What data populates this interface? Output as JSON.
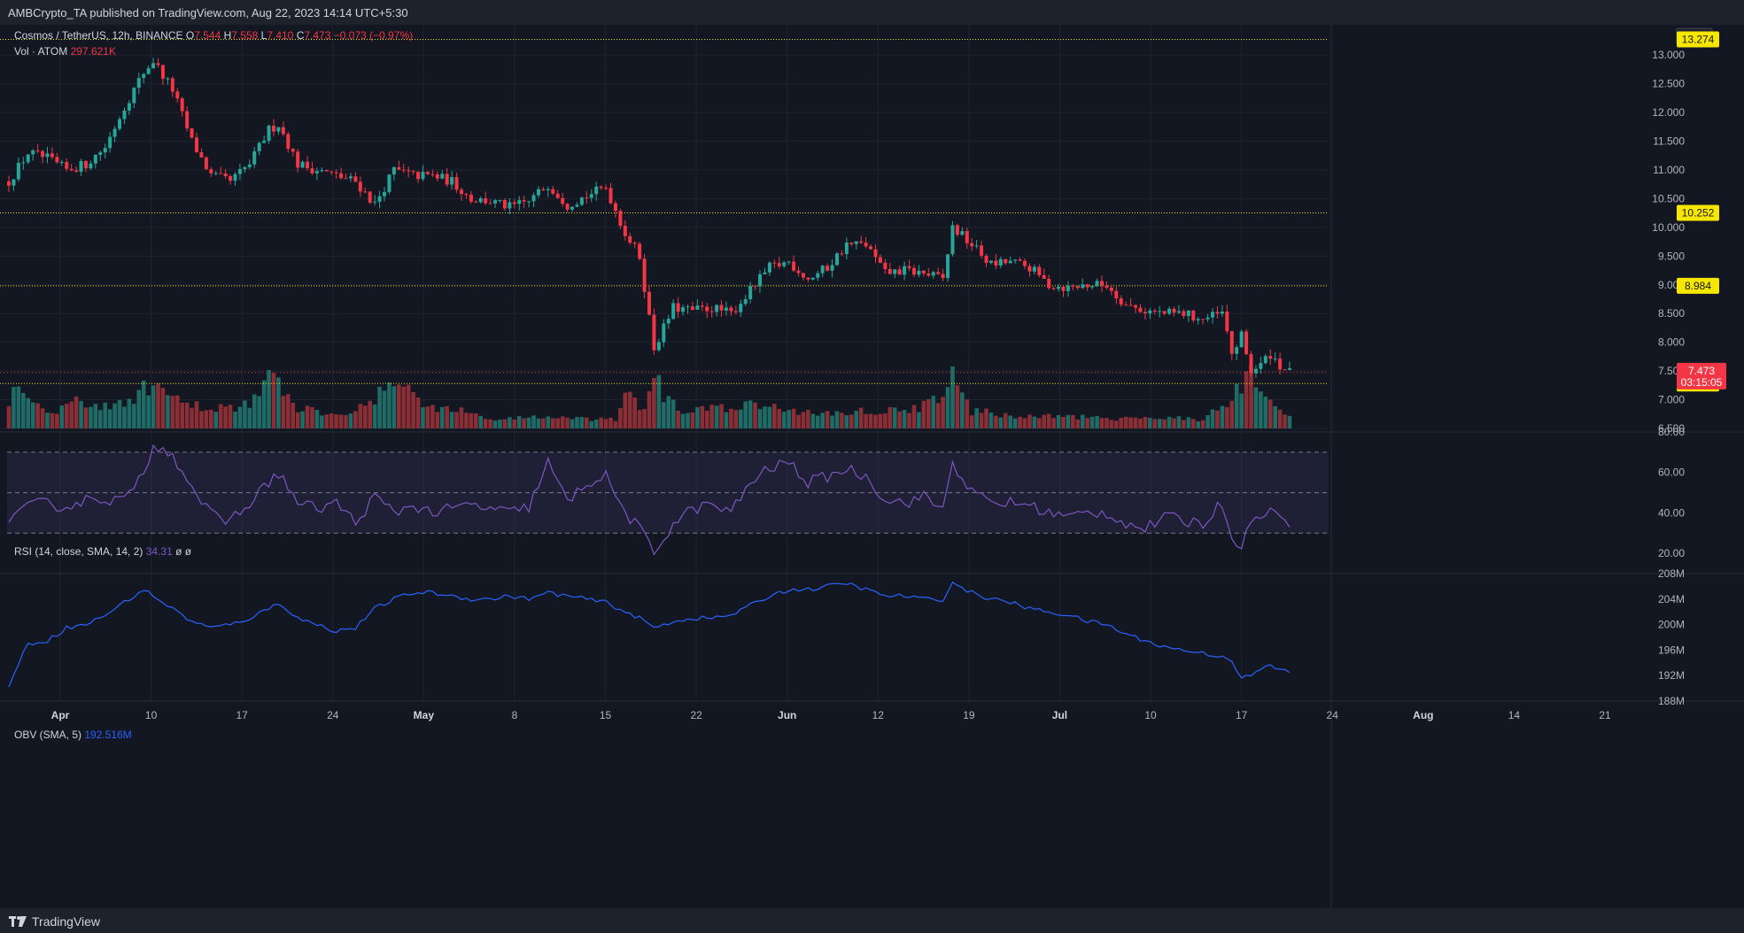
{
  "header": {
    "publish_text": "AMBCrypto_TA published on TradingView.com, Aug 22, 2023 14:14 UTC+5:30"
  },
  "legend": {
    "symbol": "Cosmos / TetherUS, 12h, BINANCE",
    "o_label": "O",
    "o_value": "7.544",
    "h_label": "H",
    "h_value": "7.558",
    "l_label": "L",
    "l_value": "7.410",
    "c_label": "C",
    "c_value": "7.473",
    "change": "−0.073 (−0.97%)",
    "vol_label": "Vol · ATOM",
    "vol_value": "297.621K",
    "rsi_label": "RSI (14, close, SMA, 14, 2)",
    "rsi_value": "34.31",
    "rsi_extra": "ø ø",
    "obv_label": "OBV (SMA, 5)",
    "obv_value": "192.516M"
  },
  "footer": {
    "brand": "TradingView"
  },
  "colors": {
    "bull": "#26a69a",
    "bear": "#f23645",
    "bull_vol": "#1f6b66",
    "bear_vol": "#8c2e35",
    "level": "#f7e600",
    "rsi": "#7e57c2",
    "obv": "#2962ff",
    "grid": "#1f2330"
  },
  "chart_data": {
    "type": "candlestick",
    "symbol": "ATOMUSDT",
    "interval": "12h",
    "quote_currency": "USDT",
    "price_axis": {
      "ylim": [
        6.5,
        13.25
      ],
      "ticks": [
        "6.500",
        "7.000",
        "7.500",
        "8.000",
        "8.500",
        "9.000",
        "9.500",
        "10.000",
        "10.500",
        "11.000",
        "11.500",
        "12.000",
        "12.500",
        "13.000"
      ]
    },
    "x_ticks": [
      {
        "label": "Apr",
        "bold": true
      },
      {
        "label": "10",
        "bold": false
      },
      {
        "label": "17",
        "bold": false
      },
      {
        "label": "24",
        "bold": false
      },
      {
        "label": "May",
        "bold": true
      },
      {
        "label": "8",
        "bold": false
      },
      {
        "label": "15",
        "bold": false
      },
      {
        "label": "22",
        "bold": false
      },
      {
        "label": "Jun",
        "bold": true
      },
      {
        "label": "12",
        "bold": false
      },
      {
        "label": "19",
        "bold": false
      },
      {
        "label": "Jul",
        "bold": true
      },
      {
        "label": "10",
        "bold": false
      },
      {
        "label": "17",
        "bold": false
      },
      {
        "label": "24",
        "bold": false
      },
      {
        "label": "Aug",
        "bold": true
      },
      {
        "label": "14",
        "bold": false
      },
      {
        "label": "21",
        "bold": false
      }
    ],
    "levels": [
      {
        "value": 13.274,
        "label": "13.274"
      },
      {
        "value": 10.252,
        "label": "10.252"
      },
      {
        "value": 8.984,
        "label": "8.984"
      },
      {
        "value": 7.282,
        "label": "7.282"
      }
    ],
    "last_price": {
      "value": 7.473,
      "label": "7.473",
      "countdown": "03:15:05"
    },
    "price_path": [
      [
        0,
        10.8
      ],
      [
        4,
        11.3
      ],
      [
        8,
        11.2
      ],
      [
        12,
        11.0
      ],
      [
        16,
        11.1
      ],
      [
        20,
        11.4
      ],
      [
        24,
        12.1
      ],
      [
        28,
        12.7
      ],
      [
        30,
        12.9
      ],
      [
        34,
        12.4
      ],
      [
        38,
        11.5
      ],
      [
        42,
        10.9
      ],
      [
        46,
        10.8
      ],
      [
        50,
        11.1
      ],
      [
        54,
        11.7
      ],
      [
        56,
        11.8
      ],
      [
        60,
        11.1
      ],
      [
        64,
        11.0
      ],
      [
        68,
        10.9
      ],
      [
        72,
        10.8
      ],
      [
        76,
        10.4
      ],
      [
        80,
        11.0
      ],
      [
        84,
        10.9
      ],
      [
        88,
        10.9
      ],
      [
        92,
        10.8
      ],
      [
        96,
        10.5
      ],
      [
        100,
        10.45
      ],
      [
        104,
        10.35
      ],
      [
        108,
        10.45
      ],
      [
        112,
        10.75
      ],
      [
        116,
        10.4
      ],
      [
        120,
        10.55
      ],
      [
        124,
        10.7
      ],
      [
        128,
        9.9
      ],
      [
        131,
        9.5
      ],
      [
        134,
        7.9
      ],
      [
        138,
        8.6
      ],
      [
        142,
        8.55
      ],
      [
        146,
        8.6
      ],
      [
        150,
        8.5
      ],
      [
        154,
        8.9
      ],
      [
        158,
        9.3
      ],
      [
        162,
        9.4
      ],
      [
        166,
        9.1
      ],
      [
        170,
        9.3
      ],
      [
        174,
        9.7
      ],
      [
        178,
        9.7
      ],
      [
        182,
        9.2
      ],
      [
        186,
        9.25
      ],
      [
        190,
        9.2
      ],
      [
        194,
        9.1
      ],
      [
        196,
        10.0
      ],
      [
        200,
        9.7
      ],
      [
        204,
        9.35
      ],
      [
        208,
        9.4
      ],
      [
        212,
        9.3
      ],
      [
        216,
        9.0
      ],
      [
        220,
        8.95
      ],
      [
        224,
        9.0
      ],
      [
        228,
        9.0
      ],
      [
        232,
        8.65
      ],
      [
        236,
        8.55
      ],
      [
        240,
        8.5
      ],
      [
        244,
        8.5
      ],
      [
        248,
        8.4
      ],
      [
        252,
        8.5
      ],
      [
        254,
        7.8
      ],
      [
        256,
        8.1
      ],
      [
        258,
        7.5
      ],
      [
        260,
        7.6
      ],
      [
        262,
        7.8
      ],
      [
        264,
        7.6
      ],
      [
        266,
        7.47
      ]
    ],
    "volume_path": [
      [
        0,
        0.5
      ],
      [
        2,
        0.85
      ],
      [
        6,
        0.4
      ],
      [
        10,
        0.3
      ],
      [
        14,
        0.5
      ],
      [
        20,
        0.35
      ],
      [
        26,
        0.55
      ],
      [
        30,
        0.75
      ],
      [
        36,
        0.4
      ],
      [
        42,
        0.35
      ],
      [
        50,
        0.4
      ],
      [
        54,
        0.9
      ],
      [
        60,
        0.35
      ],
      [
        68,
        0.25
      ],
      [
        76,
        0.45
      ],
      [
        80,
        0.9
      ],
      [
        86,
        0.4
      ],
      [
        94,
        0.3
      ],
      [
        100,
        0.15
      ],
      [
        110,
        0.2
      ],
      [
        120,
        0.15
      ],
      [
        126,
        0.15
      ],
      [
        128,
        0.6
      ],
      [
        132,
        0.3
      ],
      [
        134,
        1.0
      ],
      [
        136,
        0.5
      ],
      [
        140,
        0.3
      ],
      [
        150,
        0.35
      ],
      [
        156,
        0.4
      ],
      [
        162,
        0.3
      ],
      [
        170,
        0.25
      ],
      [
        178,
        0.3
      ],
      [
        186,
        0.3
      ],
      [
        194,
        0.5
      ],
      [
        196,
        0.9
      ],
      [
        200,
        0.3
      ],
      [
        210,
        0.2
      ],
      [
        220,
        0.2
      ],
      [
        230,
        0.15
      ],
      [
        240,
        0.2
      ],
      [
        248,
        0.15
      ],
      [
        254,
        0.5
      ],
      [
        258,
        0.9
      ],
      [
        260,
        0.5
      ],
      [
        266,
        0.2
      ]
    ],
    "rsi": {
      "ylim": [
        10,
        80
      ],
      "ticks": [
        "20.00",
        "40.00",
        "60.00",
        "80.00"
      ],
      "band": [
        30,
        70
      ],
      "middle": 50,
      "path": [
        [
          0,
          37
        ],
        [
          6,
          45
        ],
        [
          12,
          43
        ],
        [
          18,
          48
        ],
        [
          22,
          46
        ],
        [
          26,
          50
        ],
        [
          30,
          72
        ],
        [
          32,
          74
        ],
        [
          36,
          62
        ],
        [
          40,
          45
        ],
        [
          44,
          35
        ],
        [
          48,
          40
        ],
        [
          52,
          50
        ],
        [
          56,
          60
        ],
        [
          60,
          45
        ],
        [
          64,
          42
        ],
        [
          68,
          45
        ],
        [
          72,
          35
        ],
        [
          76,
          48
        ],
        [
          80,
          40
        ],
        [
          84,
          44
        ],
        [
          88,
          40
        ],
        [
          92,
          42
        ],
        [
          96,
          44
        ],
        [
          100,
          42
        ],
        [
          104,
          40
        ],
        [
          108,
          43
        ],
        [
          112,
          65
        ],
        [
          116,
          45
        ],
        [
          120,
          55
        ],
        [
          124,
          58
        ],
        [
          128,
          40
        ],
        [
          131,
          32
        ],
        [
          134,
          20
        ],
        [
          138,
          35
        ],
        [
          142,
          42
        ],
        [
          146,
          44
        ],
        [
          150,
          40
        ],
        [
          154,
          55
        ],
        [
          158,
          62
        ],
        [
          162,
          65
        ],
        [
          166,
          55
        ],
        [
          170,
          58
        ],
        [
          174,
          62
        ],
        [
          178,
          58
        ],
        [
          182,
          47
        ],
        [
          186,
          45
        ],
        [
          190,
          48
        ],
        [
          194,
          42
        ],
        [
          196,
          65
        ],
        [
          200,
          50
        ],
        [
          204,
          45
        ],
        [
          208,
          45
        ],
        [
          212,
          44
        ],
        [
          216,
          40
        ],
        [
          220,
          38
        ],
        [
          224,
          40
        ],
        [
          228,
          40
        ],
        [
          232,
          35
        ],
        [
          236,
          32
        ],
        [
          240,
          38
        ],
        [
          244,
          36
        ],
        [
          248,
          35
        ],
        [
          252,
          45
        ],
        [
          254,
          28
        ],
        [
          256,
          25
        ],
        [
          258,
          34
        ],
        [
          260,
          40
        ],
        [
          262,
          42
        ],
        [
          264,
          37
        ],
        [
          266,
          34
        ]
      ]
    },
    "obv": {
      "ylim": [
        188,
        208
      ],
      "ticks": [
        "188M",
        "192M",
        "196M",
        "200M",
        "204M",
        "208M"
      ],
      "path": [
        [
          0,
          190.5
        ],
        [
          4,
          197.0
        ],
        [
          8,
          197.5
        ],
        [
          12,
          199.5
        ],
        [
          16,
          200.0
        ],
        [
          20,
          201.5
        ],
        [
          24,
          203.5
        ],
        [
          28,
          205.5
        ],
        [
          30,
          204.5
        ],
        [
          34,
          202.5
        ],
        [
          38,
          200.5
        ],
        [
          42,
          199.5
        ],
        [
          46,
          200.0
        ],
        [
          50,
          201.0
        ],
        [
          54,
          202.5
        ],
        [
          56,
          203.5
        ],
        [
          60,
          201.0
        ],
        [
          64,
          200.0
        ],
        [
          68,
          199.0
        ],
        [
          72,
          199.5
        ],
        [
          76,
          202.5
        ],
        [
          80,
          204.0
        ],
        [
          84,
          205.0
        ],
        [
          88,
          205.0
        ],
        [
          92,
          204.5
        ],
        [
          96,
          204.0
        ],
        [
          100,
          204.0
        ],
        [
          104,
          204.5
        ],
        [
          108,
          204.0
        ],
        [
          112,
          205.0
        ],
        [
          116,
          204.5
        ],
        [
          120,
          204.0
        ],
        [
          124,
          203.5
        ],
        [
          128,
          202.0
        ],
        [
          131,
          201.0
        ],
        [
          134,
          199.5
        ],
        [
          138,
          200.5
        ],
        [
          142,
          201.0
        ],
        [
          146,
          201.0
        ],
        [
          150,
          201.5
        ],
        [
          154,
          203.0
        ],
        [
          158,
          204.5
        ],
        [
          162,
          205.5
        ],
        [
          166,
          205.5
        ],
        [
          170,
          206.0
        ],
        [
          174,
          206.5
        ],
        [
          178,
          205.5
        ],
        [
          182,
          204.5
        ],
        [
          186,
          204.5
        ],
        [
          190,
          204.0
        ],
        [
          194,
          204.0
        ],
        [
          196,
          206.5
        ],
        [
          200,
          205.0
        ],
        [
          204,
          204.0
        ],
        [
          208,
          203.5
        ],
        [
          212,
          202.5
        ],
        [
          216,
          202.0
        ],
        [
          220,
          201.5
        ],
        [
          224,
          200.5
        ],
        [
          228,
          200.0
        ],
        [
          232,
          198.5
        ],
        [
          236,
          197.5
        ],
        [
          240,
          196.5
        ],
        [
          244,
          196.0
        ],
        [
          248,
          195.5
        ],
        [
          252,
          195.0
        ],
        [
          254,
          194.5
        ],
        [
          256,
          191.5
        ],
        [
          258,
          192.0
        ],
        [
          260,
          193.0
        ],
        [
          262,
          193.5
        ],
        [
          264,
          193.0
        ],
        [
          266,
          192.5
        ]
      ]
    }
  }
}
